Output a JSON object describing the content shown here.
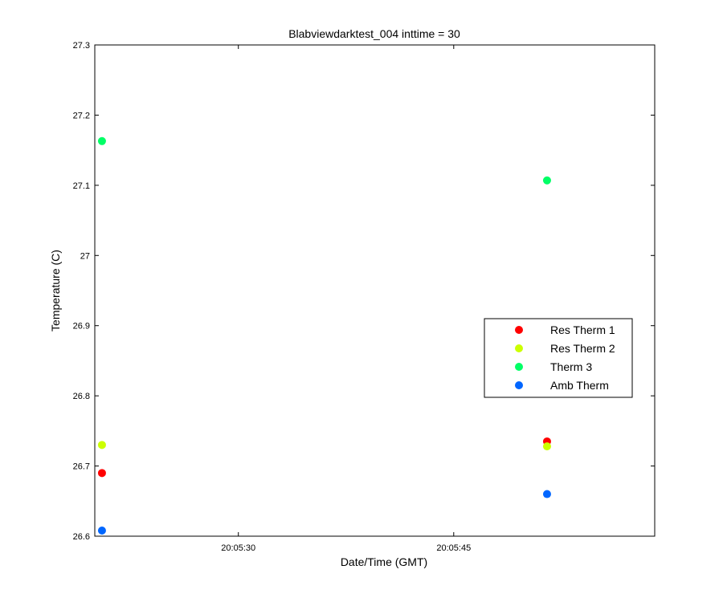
{
  "chart_data": {
    "type": "scatter",
    "title": "Blabviewdarktest_004 inttime = 30",
    "xlabel": "Date/Time (GMT)",
    "ylabel": "Temperature (C)",
    "x_axis_kind": "time",
    "xlim": [
      "20:05:20",
      "20:05:59"
    ],
    "ylim": [
      26.6,
      27.3
    ],
    "x_ticks": [
      "20:05:30",
      "20:05:45"
    ],
    "y_ticks": [
      26.6,
      26.7,
      26.8,
      26.9,
      27,
      27.1,
      27.2,
      27.3
    ],
    "y_tick_labels": [
      "26.6",
      "26.7",
      "26.8",
      "26.9",
      "27",
      "27.1",
      "27.2",
      "27.3"
    ],
    "grid": false,
    "legend_position": "right",
    "series": [
      {
        "name": "Res Therm 1",
        "color": "#ff0000",
        "points": [
          {
            "x": "20:05:20.5",
            "y": 26.69
          },
          {
            "x": "20:05:51.5",
            "y": 26.735
          }
        ]
      },
      {
        "name": "Res Therm 2",
        "color": "#ccff00",
        "points": [
          {
            "x": "20:05:20.5",
            "y": 26.73
          },
          {
            "x": "20:05:51.5",
            "y": 26.728
          }
        ]
      },
      {
        "name": "Therm 3",
        "color": "#00ff66",
        "points": [
          {
            "x": "20:05:20.5",
            "y": 27.163
          },
          {
            "x": "20:05:51.5",
            "y": 27.107
          }
        ]
      },
      {
        "name": "Amb Therm",
        "color": "#0066ff",
        "points": [
          {
            "x": "20:05:20.5",
            "y": 26.608
          },
          {
            "x": "20:05:51.5",
            "y": 26.66
          }
        ]
      }
    ]
  }
}
